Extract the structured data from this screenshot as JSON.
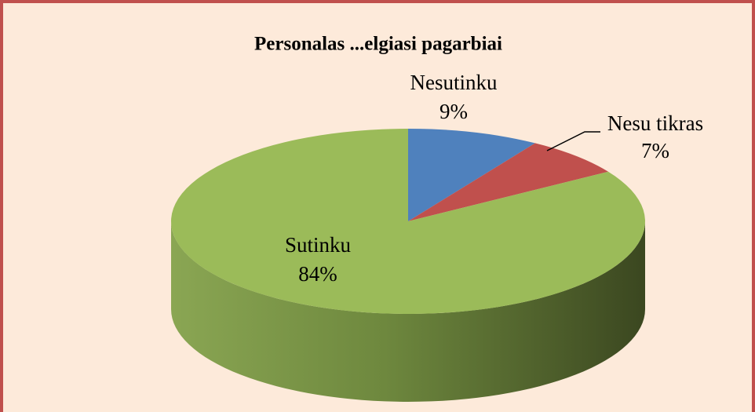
{
  "chart_data": {
    "type": "pie",
    "title": "Personalas ...elgiasi pagarbiai",
    "categories": [
      "Nesutinku",
      "Nesu tikras",
      "Sutinku"
    ],
    "values": [
      9,
      7,
      84
    ],
    "value_labels": [
      "9%",
      "7%",
      "84%"
    ],
    "colors": [
      "#4f81bd",
      "#c0504d",
      "#9bbb59"
    ]
  }
}
